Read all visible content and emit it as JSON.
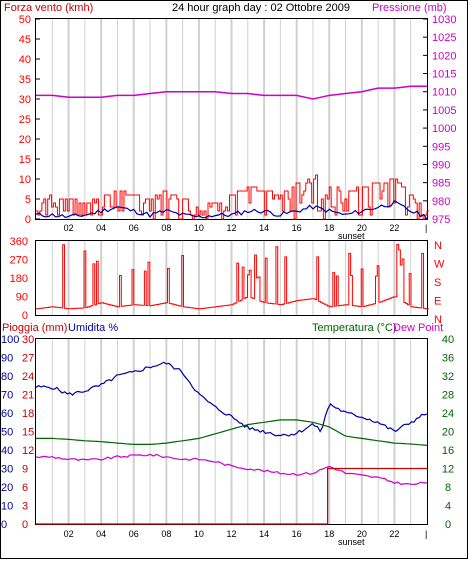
{
  "header": {
    "left_label": "Forza vento (kmh)",
    "title": "24 hour graph day : 02 Ottobre 2009",
    "right_label": "Pressione (mb)"
  },
  "colors": {
    "wind": "#ff0000",
    "gust_fill": "#008000",
    "avg_wind": "#0000a0",
    "pressure": "#cc00cc",
    "humidity": "#0000a0",
    "temperature": "#006600",
    "dewpoint": "#cc00cc",
    "rain": "#cc0000",
    "grid": "#d0d0d0"
  },
  "x_tick_labels": [
    "02",
    "04",
    "06",
    "08",
    "10",
    "12",
    "14",
    "16",
    "18",
    "20",
    "22",
    "|"
  ],
  "sunset_label": "sunset",
  "chart_data": [
    {
      "type": "line",
      "id": "wind_pressure",
      "ylabel_left": "Forza vento (kmh)",
      "ylabel_right": "Pressione (mb)",
      "ylim_left": [
        0,
        50
      ],
      "ylim_right": [
        975,
        1030
      ],
      "yticks_left": [
        "0",
        "5",
        "10",
        "15",
        "20",
        "25",
        "30",
        "35",
        "40",
        "45",
        "50"
      ],
      "yticks_right": [
        "975",
        "980",
        "985",
        "990",
        "995",
        "1000",
        "1005",
        "1010",
        "1015",
        "1020",
        "1025",
        "1030"
      ],
      "series": [
        {
          "id": "pressure",
          "x": [
            0,
            1,
            2,
            3,
            4,
            5,
            6,
            7,
            8,
            9,
            10,
            11,
            12,
            13,
            14,
            15,
            16,
            17,
            18,
            19,
            20,
            21,
            22,
            23,
            24
          ],
          "values": [
            1009,
            1009,
            1008.5,
            1008.5,
            1008.5,
            1009,
            1009,
            1009.5,
            1010,
            1010,
            1010,
            1010,
            1009.5,
            1009.5,
            1009,
            1009,
            1009,
            1008,
            1009,
            1009.5,
            1010,
            1011,
            1011,
            1011.5,
            1011.5
          ]
        },
        {
          "id": "wind_max",
          "x": [
            0,
            1,
            2,
            3,
            4,
            5,
            6,
            7,
            8,
            9,
            10,
            11,
            12,
            13,
            14,
            15,
            16,
            17,
            18,
            19,
            20,
            21,
            22,
            23,
            24
          ],
          "values": [
            4,
            6,
            5,
            4,
            6,
            7,
            6,
            5,
            7,
            5,
            3,
            4,
            6,
            8,
            7,
            6,
            9,
            11,
            8,
            7,
            8,
            9,
            10,
            6,
            2
          ]
        },
        {
          "id": "wind_avg",
          "x": [
            0,
            1,
            2,
            3,
            4,
            5,
            6,
            7,
            8,
            9,
            10,
            11,
            12,
            13,
            14,
            15,
            16,
            17,
            18,
            19,
            20,
            21,
            22,
            23,
            24
          ],
          "values": [
            1,
            1,
            0.5,
            1,
            2,
            3,
            2,
            1,
            2,
            1,
            0.5,
            1,
            1,
            2,
            2,
            1,
            2,
            3,
            2,
            1,
            2,
            3,
            4,
            2,
            0.5
          ]
        }
      ]
    },
    {
      "type": "line",
      "id": "wind_direction",
      "ylim": [
        0,
        360
      ],
      "yticks": [
        "0",
        "90",
        "180",
        "270",
        "360"
      ],
      "compass": [
        "N",
        "W",
        "S",
        "E",
        "N"
      ],
      "series": [
        {
          "id": "direction",
          "x": [
            0,
            1,
            2,
            3,
            4,
            5,
            6,
            7,
            8,
            9,
            10,
            11,
            12,
            13,
            14,
            15,
            16,
            17,
            18,
            19,
            20,
            21,
            22,
            23,
            24
          ],
          "values": [
            30,
            40,
            30,
            35,
            60,
            40,
            50,
            45,
            60,
            40,
            30,
            40,
            50,
            90,
            60,
            50,
            70,
            80,
            40,
            50,
            40,
            60,
            90,
            40,
            30
          ]
        }
      ]
    },
    {
      "type": "line",
      "id": "rain_hum_temp",
      "ylabel_rain": "Pioggia (mm)",
      "ylabel_hum": "Umidita %",
      "ylabel_temp": "Temperatura (°C)",
      "ylabel_dew": "Dew Point",
      "ylim_left_hum": [
        0,
        100
      ],
      "ylim_left_rain": [
        0,
        30
      ],
      "ylim_right": [
        0,
        40
      ],
      "yticks_hum": [
        "0",
        "10",
        "20",
        "30",
        "40",
        "50",
        "60",
        "70",
        "80",
        "90",
        "100"
      ],
      "yticks_rain": [
        "0",
        "3",
        "6",
        "9",
        "12",
        "15",
        "18",
        "21",
        "24",
        "27",
        "30"
      ],
      "yticks_temp": [
        "0",
        "4",
        "8",
        "12",
        "16",
        "20",
        "24",
        "28",
        "32",
        "36",
        "40"
      ],
      "series": [
        {
          "id": "humidity",
          "x": [
            0,
            1,
            2,
            3,
            4,
            5,
            6,
            7,
            8,
            9,
            10,
            11,
            12,
            13,
            14,
            15,
            16,
            17,
            17.5,
            18,
            19,
            20,
            21,
            22,
            23,
            24
          ],
          "values": [
            74,
            74,
            70,
            72,
            75,
            80,
            82,
            85,
            87,
            82,
            70,
            63,
            58,
            52,
            50,
            48,
            49,
            54,
            50,
            65,
            60,
            58,
            55,
            50,
            55,
            60
          ]
        },
        {
          "id": "temperature",
          "x": [
            0,
            1,
            2,
            3,
            4,
            5,
            6,
            7,
            8,
            9,
            10,
            11,
            12,
            13,
            14,
            15,
            16,
            17,
            18,
            19,
            20,
            21,
            22,
            23,
            24
          ],
          "values": [
            18.5,
            18.5,
            18.3,
            18,
            17.8,
            17.5,
            17.2,
            17.2,
            17.5,
            18,
            18.5,
            19.5,
            20.5,
            21.5,
            22,
            22.5,
            22.5,
            22,
            21,
            19,
            18.5,
            18,
            17.5,
            17.3,
            17
          ]
        },
        {
          "id": "dewpoint",
          "x": [
            0,
            1,
            2,
            3,
            4,
            5,
            6,
            7,
            8,
            9,
            10,
            11,
            12,
            13,
            14,
            15,
            16,
            17,
            18,
            19,
            20,
            21,
            22,
            23,
            24
          ],
          "values": [
            14.5,
            14.5,
            14,
            13.8,
            14,
            14.5,
            14.8,
            15,
            14.5,
            14,
            14,
            13.5,
            12.5,
            12,
            11.5,
            11,
            10.8,
            11,
            12.5,
            11,
            10.5,
            10,
            9,
            8.5,
            9
          ]
        },
        {
          "id": "rain",
          "x": [
            0,
            17.9,
            17.9,
            24
          ],
          "values": [
            0,
            0,
            9,
            9
          ]
        }
      ]
    }
  ]
}
